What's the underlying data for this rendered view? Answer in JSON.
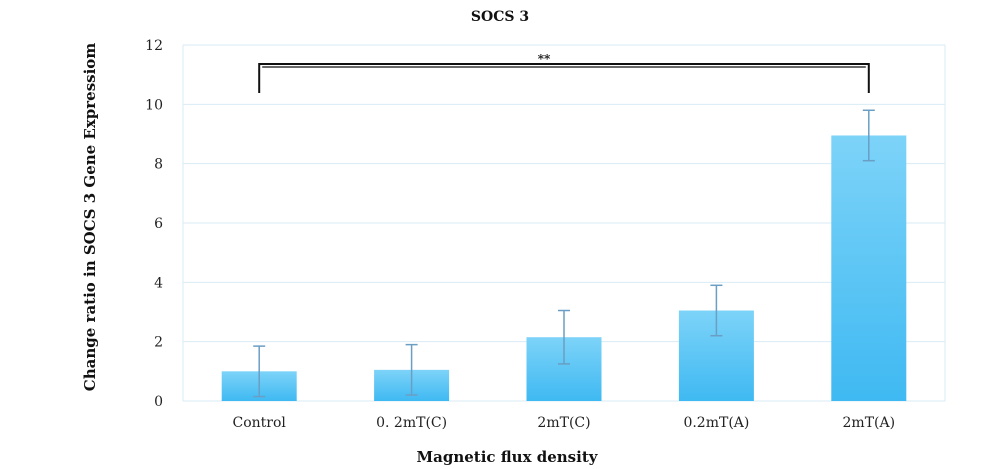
{
  "chart_data": {
    "type": "bar",
    "title": "SOCS 3",
    "xlabel": "Magnetic flux density",
    "ylabel": "Change ratio in SOCS 3 Gene Expressiom",
    "categories": [
      "Control",
      "0. 2mT(C)",
      "2mT(C)",
      "0.2mT(A)",
      "2mT(A)"
    ],
    "values": [
      1.0,
      1.05,
      2.15,
      3.05,
      8.95
    ],
    "error": [
      0.85,
      0.85,
      0.9,
      0.85,
      0.85
    ],
    "ylim": [
      0,
      12
    ],
    "yticks": [
      0,
      2,
      4,
      6,
      8,
      10,
      12
    ],
    "grid": true,
    "bar_color": "#5bc8f5",
    "error_color": "#6a9ec4",
    "significance": {
      "label": "**",
      "from": "Control",
      "to": "2mT(A)"
    }
  }
}
